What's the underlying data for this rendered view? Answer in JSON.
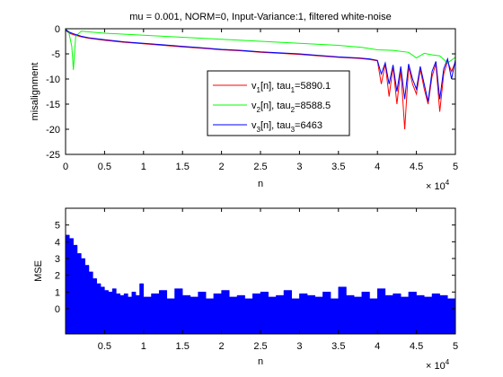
{
  "chart_data": [
    {
      "type": "line",
      "title": "mu = 0.001, NORM=0, Input-Variance:1, filtered white-noise",
      "xlabel": "n",
      "ylabel": "misalignment",
      "x_multiplier": "× 10",
      "x_multiplier_exp": "4",
      "xlim": [
        0,
        50000
      ],
      "ylim": [
        -25,
        0
      ],
      "xticks": [
        0,
        5000,
        10000,
        15000,
        20000,
        25000,
        30000,
        35000,
        40000,
        45000,
        50000
      ],
      "xtick_labels": [
        "0",
        "0.5",
        "1",
        "1.5",
        "2",
        "2.5",
        "3",
        "3.5",
        "4",
        "4.5",
        "5"
      ],
      "yticks": [
        0,
        -5,
        -10,
        -15,
        -20,
        -25
      ],
      "ytick_labels": [
        "0",
        "-5",
        "-10",
        "-15",
        "-20",
        "-25"
      ],
      "grid": false,
      "legend_position": "center-right",
      "series": [
        {
          "name": "v1[n], tau1=5890.1",
          "legend": {
            "pre": "v",
            "sub1": "1",
            "mid": "[n], tau",
            "sub2": "1",
            "post": "=5890.1"
          },
          "color": "#ff0000",
          "x": [
            0,
            500,
            1000,
            2000,
            3000,
            5000,
            7500,
            10000,
            12500,
            15000,
            17500,
            20000,
            22500,
            25000,
            27500,
            30000,
            32500,
            35000,
            37500,
            39000,
            40000,
            40500,
            41000,
            41500,
            42000,
            42500,
            43000,
            43500,
            44000,
            44500,
            45000,
            45500,
            46000,
            46500,
            47000,
            47500,
            48000,
            48500,
            49000,
            49500,
            50000
          ],
          "y": [
            -0.3,
            -0.9,
            -1.2,
            -1.6,
            -1.9,
            -2.3,
            -2.7,
            -3.0,
            -3.3,
            -3.6,
            -3.9,
            -4.2,
            -4.4,
            -4.7,
            -4.9,
            -5.1,
            -5.4,
            -5.7,
            -5.9,
            -6.1,
            -6.4,
            -11.0,
            -7.0,
            -13.5,
            -7.5,
            -15.0,
            -8.0,
            -20.0,
            -7.5,
            -11.0,
            -13.0,
            -8.0,
            -12.0,
            -15.0,
            -9.5,
            -7.0,
            -16.5,
            -9.0,
            -6.5,
            -8.5,
            -6.6
          ]
        },
        {
          "name": "v2[n], tau2=8588.5",
          "legend": {
            "pre": "v",
            "sub1": "2",
            "mid": "[n], tau",
            "sub2": "2",
            "post": "=8588.5"
          },
          "color": "#00ff00",
          "x": [
            0,
            400,
            800,
            1000,
            1300,
            2000,
            5000,
            10000,
            15000,
            20000,
            25000,
            30000,
            35000,
            38000,
            40000,
            42000,
            44000,
            45000,
            46000,
            47000,
            48000,
            49000,
            50000
          ],
          "y": [
            0,
            -0.6,
            -3.5,
            -8.2,
            -1.5,
            -0.5,
            -0.9,
            -1.3,
            -1.7,
            -2.1,
            -2.5,
            -2.9,
            -3.3,
            -3.7,
            -4.2,
            -4.3,
            -4.7,
            -5.8,
            -4.9,
            -5.2,
            -5.4,
            -6.8,
            -5.7
          ]
        },
        {
          "name": "v3[n], tau3=6463",
          "legend": {
            "pre": "v",
            "sub1": "3",
            "mid": "[n], tau",
            "sub2": "3",
            "post": "=6463"
          },
          "color": "#0000ff",
          "x": [
            0,
            500,
            1000,
            2000,
            3000,
            5000,
            7500,
            10000,
            12500,
            15000,
            17500,
            20000,
            22500,
            25000,
            27500,
            30000,
            32500,
            35000,
            37500,
            39000,
            40000,
            40500,
            41000,
            41500,
            42000,
            42500,
            43000,
            43500,
            44000,
            44500,
            45000,
            45500,
            46000,
            46500,
            47000,
            47500,
            48000,
            48500,
            49000,
            49500,
            50000
          ],
          "y": [
            -0.2,
            -0.7,
            -1.0,
            -1.5,
            -1.8,
            -2.2,
            -2.6,
            -2.9,
            -3.2,
            -3.5,
            -3.8,
            -4.1,
            -4.3,
            -4.6,
            -4.8,
            -5.0,
            -5.3,
            -5.6,
            -5.8,
            -6.0,
            -6.3,
            -9.0,
            -6.8,
            -11.0,
            -7.2,
            -12.5,
            -7.5,
            -14.0,
            -7.0,
            -10.0,
            -12.0,
            -7.5,
            -11.0,
            -14.5,
            -8.5,
            -6.5,
            -14.0,
            -8.0,
            -6.0,
            -10.0,
            -6.2
          ]
        }
      ]
    },
    {
      "type": "area",
      "xlabel": "n",
      "ylabel": "MSE",
      "x_multiplier": "× 10",
      "x_multiplier_exp": "4",
      "xlim": [
        0,
        50000
      ],
      "ylim": [
        -1.5,
        6
      ],
      "baseline": -1.5,
      "xticks": [
        5000,
        10000,
        15000,
        20000,
        25000,
        30000,
        35000,
        40000,
        45000,
        50000
      ],
      "xtick_labels": [
        "0.5",
        "1",
        "1.5",
        "2",
        "2.5",
        "3",
        "3.5",
        "4",
        "4.5",
        "5"
      ],
      "yticks": [
        0,
        1,
        2,
        3,
        4,
        5
      ],
      "ytick_labels": [
        "0",
        "1",
        "2",
        "3",
        "4",
        "5"
      ],
      "grid": false,
      "color": "#0000ff",
      "x": [
        0,
        500,
        1000,
        1500,
        2000,
        2500,
        3000,
        3500,
        4000,
        4500,
        5000,
        5500,
        6000,
        6500,
        7000,
        7500,
        8000,
        8500,
        9000,
        9500,
        10000,
        11000,
        12000,
        13000,
        14000,
        15000,
        16000,
        17000,
        18000,
        19000,
        20000,
        21000,
        22000,
        23000,
        24000,
        25000,
        26000,
        27000,
        28000,
        29000,
        30000,
        31000,
        32000,
        33000,
        34000,
        35000,
        36000,
        37000,
        38000,
        39000,
        40000,
        41000,
        42000,
        43000,
        44000,
        45000,
        46000,
        47000,
        48000,
        49000,
        50000
      ],
      "values": [
        4.4,
        4.2,
        3.8,
        3.3,
        3.0,
        2.6,
        2.2,
        1.8,
        1.5,
        1.3,
        1.1,
        1.0,
        1.2,
        0.9,
        0.8,
        0.9,
        0.7,
        1.0,
        0.8,
        1.5,
        0.7,
        0.9,
        1.1,
        0.6,
        1.2,
        0.8,
        0.7,
        1.0,
        0.6,
        0.9,
        1.1,
        0.7,
        0.8,
        0.6,
        0.9,
        1.0,
        0.7,
        0.8,
        1.1,
        0.6,
        0.9,
        0.8,
        0.7,
        1.0,
        0.6,
        1.3,
        0.8,
        0.7,
        1.0,
        0.6,
        1.2,
        0.8,
        0.9,
        0.7,
        1.0,
        0.8,
        0.7,
        0.9,
        0.8,
        0.6,
        0.5
      ]
    }
  ]
}
